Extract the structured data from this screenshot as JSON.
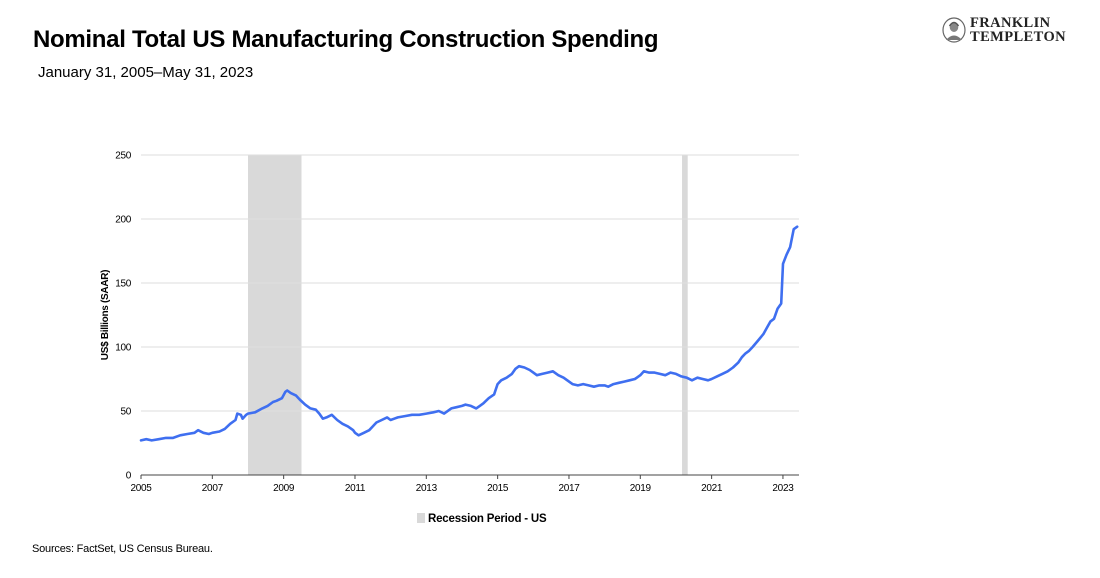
{
  "header": {
    "title": "Nominal Total US Manufacturing Construction Spending",
    "subtitle": "January 31, 2005–May 31, 2023"
  },
  "brand": {
    "line1": "FRANKLIN",
    "line2": "TEMPLETON",
    "logo_icon": "franklin-portrait-icon"
  },
  "footer": {
    "sources": "Sources: FactSet, US Census Bureau."
  },
  "colors": {
    "line": "#3f6ff0",
    "recession": "#d9d9d9",
    "grid": "#dedede",
    "axis": "#444444"
  },
  "chart_data": {
    "type": "line",
    "title": "Nominal Total US Manufacturing Construction Spending",
    "subtitle": "January 31, 2005–May 31, 2023",
    "ylabel": "US$ Billions (SAAR)",
    "xlabel": "",
    "ylim": [
      0,
      250
    ],
    "yticks": [
      0,
      50,
      100,
      150,
      200,
      250
    ],
    "xlim": [
      2005.0,
      2023.45
    ],
    "xticks": [
      2005,
      2007,
      2009,
      2011,
      2013,
      2015,
      2017,
      2019,
      2021,
      2023
    ],
    "grid": "horizontal",
    "legend_position": "bottom-center",
    "recessions": [
      {
        "start": 2008.0,
        "end": 2009.5
      },
      {
        "start": 2020.17,
        "end": 2020.33
      }
    ],
    "legend": [
      {
        "label": "Recession Period - US",
        "color": "#d9d9d9"
      }
    ],
    "series": [
      {
        "x": [
          2005.0,
          2005.15,
          2005.3,
          2005.5,
          2005.7,
          2005.9,
          2006.1,
          2006.3,
          2006.5,
          2006.6,
          2006.75,
          2006.9,
          2007.0,
          2007.2,
          2007.35,
          2007.5,
          2007.65,
          2007.7,
          2007.8,
          2007.85,
          2007.95,
          2008.0,
          2008.2,
          2008.4,
          2008.55,
          2008.7,
          2008.8,
          2008.95,
          2009.05,
          2009.1,
          2009.2,
          2009.35,
          2009.45,
          2009.6,
          2009.75,
          2009.9,
          2010.0,
          2010.1,
          2010.2,
          2010.35,
          2010.5,
          2010.65,
          2010.8,
          2010.95,
          2011.0,
          2011.1,
          2011.25,
          2011.4,
          2011.5,
          2011.6,
          2011.75,
          2011.9,
          2012.0,
          2012.1,
          2012.2,
          2012.4,
          2012.6,
          2012.8,
          2013.0,
          2013.2,
          2013.35,
          2013.5,
          2013.7,
          2013.85,
          2014.0,
          2014.1,
          2014.25,
          2014.4,
          2014.5,
          2014.6,
          2014.75,
          2014.9,
          2015.0,
          2015.1,
          2015.25,
          2015.4,
          2015.5,
          2015.6,
          2015.75,
          2015.9,
          2016.0,
          2016.1,
          2016.25,
          2016.4,
          2016.55,
          2016.7,
          2016.85,
          2017.0,
          2017.1,
          2017.25,
          2017.4,
          2017.55,
          2017.7,
          2017.85,
          2018.0,
          2018.1,
          2018.25,
          2018.4,
          2018.55,
          2018.7,
          2018.85,
          2019.0,
          2019.1,
          2019.25,
          2019.4,
          2019.55,
          2019.7,
          2019.85,
          2020.0,
          2020.15,
          2020.3,
          2020.45,
          2020.6,
          2020.75,
          2020.9,
          2021.0,
          2021.15,
          2021.3,
          2021.45,
          2021.6,
          2021.75,
          2021.85,
          2021.95,
          2022.05,
          2022.15,
          2022.3,
          2022.45,
          2022.55,
          2022.65,
          2022.75,
          2022.85,
          2022.95,
          2023.0,
          2023.1,
          2023.2,
          2023.3,
          2023.4
        ],
        "values": [
          27,
          28,
          27,
          28,
          29,
          29,
          31,
          32,
          33,
          35,
          33,
          32,
          33,
          34,
          36,
          40,
          43,
          48,
          47,
          44,
          47,
          48,
          49,
          52,
          54,
          57,
          58,
          60,
          65,
          66,
          64,
          62,
          59,
          55,
          52,
          51,
          48,
          44,
          45,
          47,
          43,
          40,
          38,
          35,
          33,
          31,
          33,
          35,
          38,
          41,
          43,
          45,
          43,
          44,
          45,
          46,
          47,
          47,
          48,
          49,
          50,
          48,
          52,
          53,
          54,
          55,
          54,
          52,
          54,
          56,
          60,
          63,
          71,
          74,
          76,
          79,
          83,
          85,
          84,
          82,
          80,
          78,
          79,
          80,
          81,
          78,
          76,
          73,
          71,
          70,
          71,
          70,
          69,
          70,
          70,
          69,
          71,
          72,
          73,
          74,
          75,
          78,
          81,
          80,
          80,
          79,
          78,
          80,
          79,
          77,
          76,
          74,
          76,
          75,
          74,
          75,
          77,
          79,
          81,
          84,
          88,
          92,
          95,
          97,
          100,
          105,
          110,
          115,
          120,
          122,
          130,
          134,
          165,
          172,
          178,
          192,
          194
        ]
      }
    ]
  }
}
